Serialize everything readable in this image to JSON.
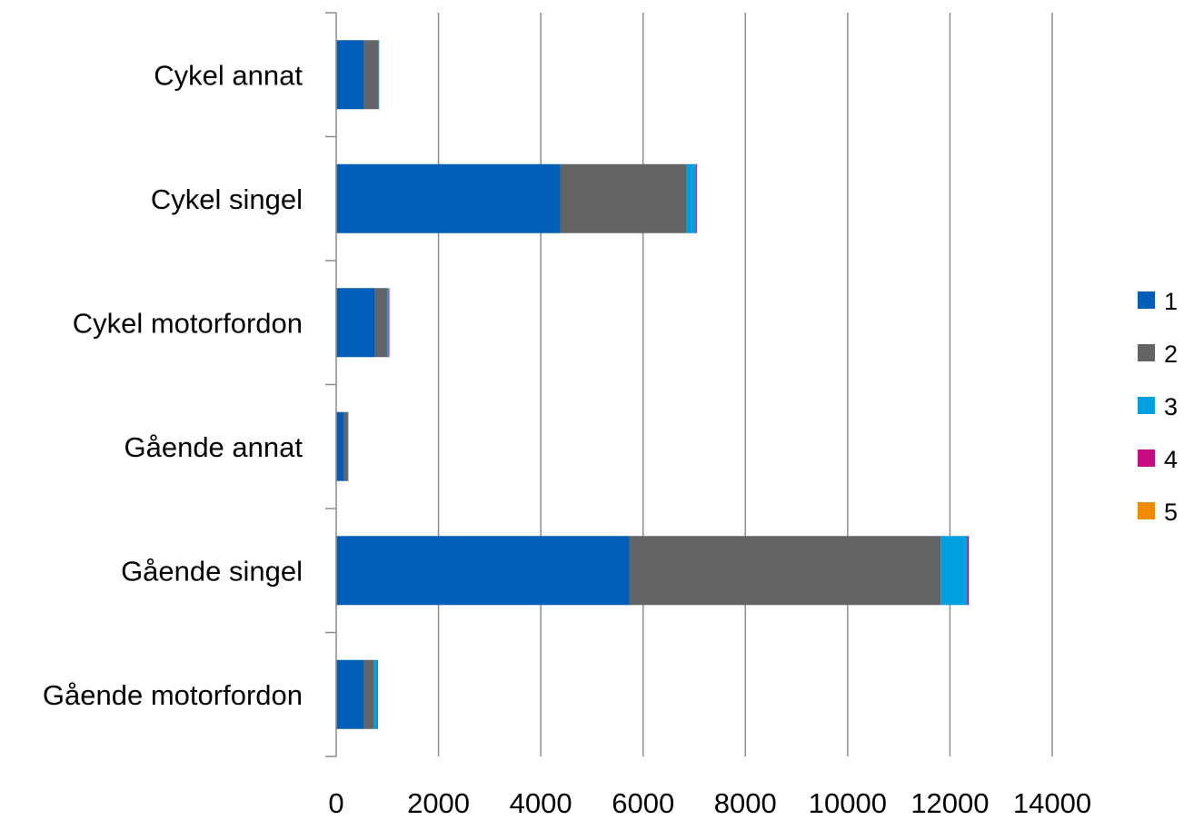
{
  "chart_data": {
    "type": "bar",
    "orientation": "horizontal",
    "stacked": true,
    "title": "",
    "xlabel": "",
    "ylabel": "",
    "categories": [
      "Gående motorfordon",
      "Gående singel",
      "Gående annat",
      "Cykel motorfordon",
      "Cykel singel",
      "Cykel annat"
    ],
    "series": [
      {
        "name": "1",
        "color": "#005EB8",
        "values": [
          540,
          5730,
          150,
          760,
          4380,
          540
        ]
      },
      {
        "name": "2",
        "color": "#636466",
        "values": [
          200,
          6090,
          80,
          240,
          2460,
          290
        ]
      },
      {
        "name": "3",
        "color": "#009FDF",
        "values": [
          60,
          520,
          5,
          30,
          200,
          10
        ]
      },
      {
        "name": "4",
        "color": "#C80B7F",
        "values": [
          15,
          30,
          0,
          5,
          15,
          0
        ]
      },
      {
        "name": "5",
        "color": "#F08A00",
        "values": [
          0,
          0,
          0,
          0,
          0,
          0
        ]
      }
    ],
    "xlim": [
      0,
      14000
    ],
    "xticks": [
      "0",
      "2000",
      "4000",
      "6000",
      "8000",
      "10000",
      "12000",
      "14000"
    ],
    "grid": true,
    "legend_position": "right"
  }
}
